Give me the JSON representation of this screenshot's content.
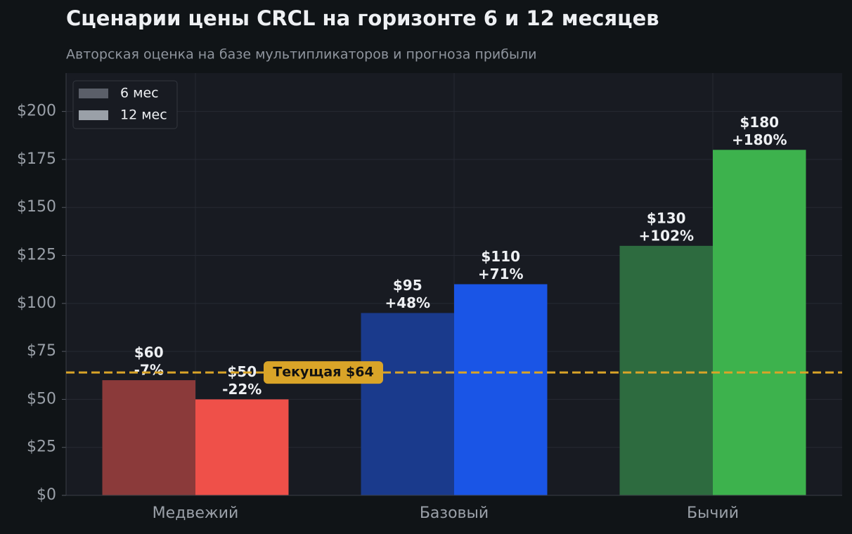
{
  "chart_data": {
    "type": "bar",
    "title": "Сценарии цены CRCL на горизонте 6 и 12 месяцев",
    "subtitle": "Авторская оценка на базе мультипликаторов и прогноза прибыли",
    "categories": [
      "Медвежий",
      "Базовый",
      "Бычий"
    ],
    "series": [
      {
        "name": "6 мес",
        "color": "#5b5f69",
        "colors": [
          "#8b3a3a",
          "#1a3a8c",
          "#2d6b3f"
        ],
        "values": [
          60,
          95,
          130
        ],
        "value_labels": [
          "$60",
          "$95",
          "$130"
        ],
        "changes": [
          -7,
          48,
          102
        ],
        "change_labels": [
          "-7%",
          "+48%",
          "+102%"
        ]
      },
      {
        "name": "12 мес",
        "color": "#9aa0a8",
        "colors": [
          "#ef5049",
          "#1a55e6",
          "#3db24d"
        ],
        "values": [
          50,
          110,
          180
        ],
        "value_labels": [
          "$50",
          "$110",
          "$180"
        ],
        "changes": [
          -22,
          71,
          180
        ],
        "change_labels": [
          "-22%",
          "+71%",
          "+180%"
        ]
      }
    ],
    "reference": {
      "value": 64,
      "label": "Текущая $64",
      "color": "#d9a428"
    },
    "ylim": [
      0,
      220
    ],
    "yticks": [
      {
        "value": 0,
        "label": "$0"
      },
      {
        "value": 25,
        "label": "$25"
      },
      {
        "value": 50,
        "label": "$50"
      },
      {
        "value": 75,
        "label": "$75"
      },
      {
        "value": 100,
        "label": "$100"
      },
      {
        "value": 125,
        "label": "$125"
      },
      {
        "value": 150,
        "label": "$150"
      },
      {
        "value": 175,
        "label": "$175"
      },
      {
        "value": 200,
        "label": "$200"
      }
    ],
    "grid": true,
    "legend": "upper left"
  }
}
